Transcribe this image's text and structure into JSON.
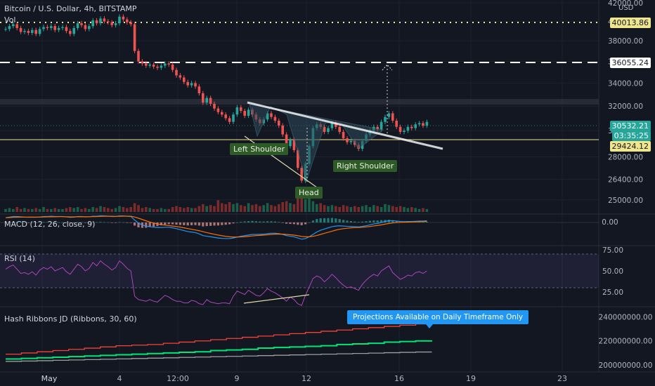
{
  "header": {
    "symbol_title": "Bitcoin / U.S. Dollar, 4h, BITSTAMP",
    "volume_label": "Vol",
    "currency": "USD"
  },
  "levels": {
    "upper_dotted": "40013.86",
    "dashed_target": "36055.24",
    "current_price": "30532.21",
    "countdown": "03:35:25",
    "support_yellow": "29424.12"
  },
  "annotations": {
    "left_shoulder": "Left Shoulder",
    "head": "Head",
    "right_shoulder": "Right Shoulder",
    "projection_note": "Projections Available on Daily Timeframe Only"
  },
  "panels": {
    "macd": "MACD (12, 26, close, 9)",
    "rsi": "RSI (14)",
    "hash": "Hash Ribbons JD (Ribbons, 30, 60)"
  },
  "colors": {
    "bg": "#131722",
    "up": "#26a69a",
    "down": "#ef5350",
    "grid": "#1e222d",
    "yellow": "#f0e68c",
    "rsi_line": "#ab47bc",
    "macd_line": "#2196f3",
    "signal_line": "#ff6d00",
    "hash_red": "#f44336",
    "hash_green": "#00e676",
    "hash_gray": "#9e9e9e",
    "note_bg": "#2196f3"
  },
  "chart_data": [
    {
      "type": "candlestick",
      "title": "Bitcoin / U.S. Dollar, 4h, BITSTAMP",
      "yaxis_ticks": [
        "42000.00",
        "40000.00",
        "38000.00",
        "36000.00",
        "34000.00",
        "32000.00",
        "30000.00",
        "28000.00",
        "26400.00",
        "25000.00"
      ],
      "xaxis_ticks": [
        "May",
        "4",
        "12:00",
        "9",
        "12",
        "16",
        "19",
        "23"
      ],
      "ylim": [
        24400,
        42000
      ],
      "scale": "log",
      "series": [
        {
          "name": "price",
          "values": [
            39200,
            39500,
            39700,
            39300,
            38900,
            39000,
            38800,
            39100,
            38700,
            39200,
            39400,
            39300,
            39500,
            39100,
            39300,
            39400,
            39000,
            38700,
            39300,
            39800,
            39600,
            39200,
            39500,
            40100,
            39800,
            40300,
            40000,
            39900,
            39600,
            39800,
            40500,
            40200,
            39900,
            39700,
            37000,
            36000,
            35800,
            35600,
            35700,
            35500,
            35400,
            35600,
            35800,
            35700,
            35200,
            34700,
            34500,
            34100,
            33800,
            34000,
            33700,
            33100,
            32300,
            32700,
            32200,
            31800,
            31500,
            31300,
            31000,
            30700,
            31300,
            31900,
            31600,
            31200,
            31700,
            31300,
            30900,
            30600,
            30900,
            31400,
            31100,
            30800,
            30400,
            29700,
            28800,
            29300,
            28500,
            27200,
            26300,
            27500,
            28800,
            30200,
            30500,
            30300,
            29900,
            30200,
            30600,
            30300,
            29900,
            29400,
            29100,
            29200,
            28900,
            28600,
            29200,
            29700,
            30000,
            30300,
            30100,
            30700,
            31100,
            31400,
            30800,
            30300,
            29900,
            30000,
            30300,
            30200,
            30500,
            30600,
            30400,
            30700
          ]
        }
      ]
    },
    {
      "type": "bar",
      "title": "Vol",
      "series": [
        {
          "name": "Vol",
          "values": [
            0.3,
            0.4,
            0.3,
            0.5,
            0.3,
            0.4,
            0.3,
            0.3,
            0.4,
            0.3,
            0.5,
            0.3,
            0.3,
            0.4,
            0.3,
            0.3,
            0.4,
            0.5,
            0.4,
            0.5,
            0.3,
            0.4,
            0.3,
            0.5,
            0.4,
            0.6,
            0.5,
            0.4,
            0.3,
            0.4,
            0.6,
            0.5,
            0.4,
            0.5,
            0.9,
            0.7,
            0.4,
            0.5,
            0.4,
            0.3,
            0.3,
            0.4,
            0.3,
            0.3,
            0.5,
            0.6,
            0.5,
            0.4,
            0.5,
            0.4,
            0.4,
            0.6,
            0.8,
            0.6,
            0.7,
            0.6,
            1.2,
            0.9,
            0.8,
            1.0,
            0.8,
            0.9,
            0.7,
            0.6,
            0.9,
            0.7,
            0.8,
            0.6,
            0.7,
            0.9,
            0.7,
            0.6,
            0.8,
            1.0,
            1.1,
            0.9,
            0.8,
            2.0,
            2.2,
            1.3,
            1.4,
            1.1,
            0.8,
            0.9,
            0.7,
            0.6,
            0.7,
            0.6,
            0.5,
            0.7,
            0.6,
            0.5,
            0.6,
            0.5,
            0.6,
            0.7,
            0.5,
            0.7,
            0.6,
            0.5,
            0.8,
            0.7,
            0.6,
            0.5,
            0.6,
            0.5,
            0.4,
            0.5,
            0.4,
            0.3,
            0.4,
            0.3
          ]
        }
      ]
    },
    {
      "type": "line",
      "title": "MACD (12, 26, close, 9)",
      "yaxis_ticks": [
        "0.00"
      ],
      "series": [
        {
          "name": "MACD",
          "values": [
            0.4,
            0.45,
            0.5,
            0.5,
            0.48,
            0.45,
            0.44,
            0.45,
            0.44,
            0.46,
            0.5,
            0.5,
            0.52,
            0.5,
            0.5,
            0.5,
            0.47,
            0.43,
            0.45,
            0.5,
            0.5,
            0.47,
            0.48,
            0.52,
            0.52,
            0.56,
            0.55,
            0.53,
            0.5,
            0.5,
            0.55,
            0.55,
            0.52,
            0.5,
            0.2,
            -0.05,
            -0.2,
            -0.3,
            -0.35,
            -0.4,
            -0.42,
            -0.42,
            -0.4,
            -0.4,
            -0.45,
            -0.52,
            -0.6,
            -0.68,
            -0.76,
            -0.8,
            -0.85,
            -0.95,
            -1.1,
            -1.15,
            -1.2,
            -1.25,
            -1.3,
            -1.33,
            -1.35,
            -1.35,
            -1.3,
            -1.22,
            -1.15,
            -1.1,
            -1.05,
            -1.0,
            -1.0,
            -1.0,
            -0.98,
            -0.93,
            -0.9,
            -0.9,
            -0.93,
            -1.0,
            -1.1,
            -1.15,
            -1.2,
            -1.3,
            -1.4,
            -1.35,
            -1.2,
            -1.0,
            -0.8,
            -0.65,
            -0.55,
            -0.45,
            -0.35,
            -0.3,
            -0.28,
            -0.3,
            -0.32,
            -0.33,
            -0.35,
            -0.37,
            -0.33,
            -0.27,
            -0.2,
            -0.12,
            -0.08,
            0.0,
            0.08,
            0.15,
            0.15,
            0.12,
            0.08,
            0.07,
            0.08,
            0.08,
            0.1,
            0.12,
            0.12,
            0.15
          ]
        },
        {
          "name": "Signal",
          "values": [
            0.4,
            0.41,
            0.43,
            0.44,
            0.45,
            0.45,
            0.45,
            0.45,
            0.45,
            0.45,
            0.46,
            0.47,
            0.48,
            0.48,
            0.49,
            0.49,
            0.48,
            0.47,
            0.47,
            0.48,
            0.48,
            0.48,
            0.48,
            0.49,
            0.5,
            0.51,
            0.52,
            0.52,
            0.52,
            0.51,
            0.52,
            0.53,
            0.53,
            0.52,
            0.46,
            0.36,
            0.25,
            0.14,
            0.04,
            -0.05,
            -0.12,
            -0.18,
            -0.22,
            -0.26,
            -0.3,
            -0.34,
            -0.39,
            -0.45,
            -0.51,
            -0.57,
            -0.63,
            -0.69,
            -0.77,
            -0.85,
            -0.92,
            -0.99,
            -1.05,
            -1.11,
            -1.16,
            -1.2,
            -1.22,
            -1.22,
            -1.21,
            -1.19,
            -1.16,
            -1.13,
            -1.1,
            -1.08,
            -1.06,
            -1.03,
            -1.0,
            -0.98,
            -0.97,
            -0.98,
            -1.0,
            -1.03,
            -1.06,
            -1.11,
            -1.17,
            -1.2,
            -1.2,
            -1.16,
            -1.09,
            -1.0,
            -0.91,
            -0.82,
            -0.73,
            -0.64,
            -0.57,
            -0.52,
            -0.48,
            -0.45,
            -0.43,
            -0.42,
            -0.4,
            -0.37,
            -0.34,
            -0.29,
            -0.25,
            -0.2,
            -0.14,
            -0.08,
            -0.04,
            -0.01,
            0.01,
            0.02,
            0.03,
            0.04,
            0.05,
            0.06,
            0.07,
            0.09
          ]
        }
      ]
    },
    {
      "type": "line",
      "title": "RSI (14)",
      "yaxis_ticks": [
        "75.00",
        "50.00",
        "25.00"
      ],
      "ylim": [
        10,
        78
      ],
      "series": [
        {
          "name": "RSI",
          "values": [
            52,
            55,
            57,
            52,
            47,
            48,
            46,
            49,
            45,
            51,
            54,
            52,
            55,
            50,
            52,
            54,
            49,
            46,
            52,
            58,
            55,
            50,
            53,
            60,
            56,
            62,
            58,
            55,
            51,
            54,
            62,
            58,
            53,
            50,
            20,
            16,
            15,
            14,
            16,
            14,
            13,
            17,
            21,
            19,
            16,
            14,
            14,
            12,
            12,
            15,
            14,
            11,
            10,
            16,
            13,
            12,
            11,
            12,
            12,
            11,
            20,
            26,
            24,
            22,
            27,
            24,
            21,
            20,
            24,
            29,
            26,
            24,
            21,
            18,
            14,
            19,
            16,
            11,
            9,
            21,
            31,
            41,
            44,
            42,
            37,
            41,
            46,
            42,
            37,
            33,
            30,
            31,
            29,
            27,
            34,
            39,
            43,
            46,
            44,
            50,
            53,
            56,
            48,
            44,
            40,
            42,
            45,
            44,
            48,
            49,
            47,
            50
          ]
        }
      ]
    },
    {
      "type": "line",
      "title": "Hash Ribbons JD (Ribbons, 30, 60)",
      "yaxis_ticks": [
        "240000000.00",
        "220000000.00",
        "200000000.00"
      ],
      "ylim": [
        196000000,
        246000000
      ],
      "series": [
        {
          "name": "Ribbon 30",
          "values": [
            209000000,
            210000000,
            211000000,
            212000000,
            213000000,
            214000000,
            215000000,
            216000000,
            216500000,
            217000000,
            218000000,
            219000000,
            220000000,
            221000000,
            222000000,
            223000000,
            224000000,
            225000000,
            226000000,
            227000000,
            228000000,
            229000000,
            230000000,
            231000000,
            232000000,
            233000000,
            234000000,
            234000000
          ]
        },
        {
          "name": "Ribbon 60",
          "values": [
            205000000,
            205500000,
            206000000,
            206500000,
            207000000,
            207500000,
            208000000,
            208500000,
            209000000,
            209500000,
            210000000,
            210500000,
            211000000,
            212000000,
            212500000,
            213000000,
            214000000,
            214500000,
            215000000,
            215500000,
            216000000,
            217000000,
            217500000,
            218000000,
            219000000,
            219500000,
            220000000,
            220500000
          ]
        },
        {
          "name": "Ribbon Base",
          "values": [
            203000000,
            203300000,
            203600000,
            203900000,
            204200000,
            204500000,
            204800000,
            205100000,
            205400000,
            205700000,
            206000000,
            206300000,
            206600000,
            206900000,
            207200000,
            207500000,
            207800000,
            208100000,
            208400000,
            208700000,
            209000000,
            209300000,
            209600000,
            209900000,
            210200000,
            210500000,
            210800000,
            211000000
          ]
        }
      ]
    }
  ]
}
